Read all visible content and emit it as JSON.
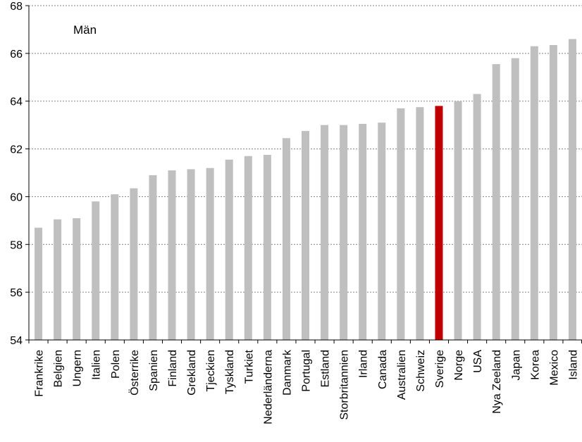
{
  "chart_data": {
    "type": "bar",
    "title": "Män",
    "xlabel": "",
    "ylabel": "",
    "ylim": [
      54,
      68
    ],
    "yticks": [
      54,
      56,
      58,
      60,
      62,
      64,
      66,
      68
    ],
    "grid": "horizontal dashed",
    "legend": "none",
    "colors": {
      "default": "#bfbfbf",
      "highlight": "#c00000",
      "grid": "#808080",
      "axis": "#000000"
    },
    "highlight": "Sverige",
    "categories": [
      "Frankrike",
      "Belgien",
      "Ungern",
      "Italien",
      "Polen",
      "Österrike",
      "Spanien",
      "Finland",
      "Grekland",
      "Tjeckien",
      "Tyskland",
      "Turkiet",
      "Nederländerna",
      "Danmark",
      "Portugal",
      "Estland",
      "Storbritannien",
      "Irland",
      "Canada",
      "Australien",
      "Schweiz",
      "Sverige",
      "Norge",
      "USA",
      "Nya Zeeland",
      "Japan",
      "Korea",
      "Mexico",
      "Island"
    ],
    "values": [
      58.7,
      59.05,
      59.1,
      59.8,
      60.1,
      60.35,
      60.9,
      61.1,
      61.15,
      61.2,
      61.55,
      61.7,
      61.75,
      62.45,
      62.75,
      63.0,
      63.0,
      63.05,
      63.1,
      63.7,
      63.75,
      63.8,
      64.0,
      64.3,
      65.55,
      65.8,
      66.3,
      66.35,
      66.6
    ]
  }
}
